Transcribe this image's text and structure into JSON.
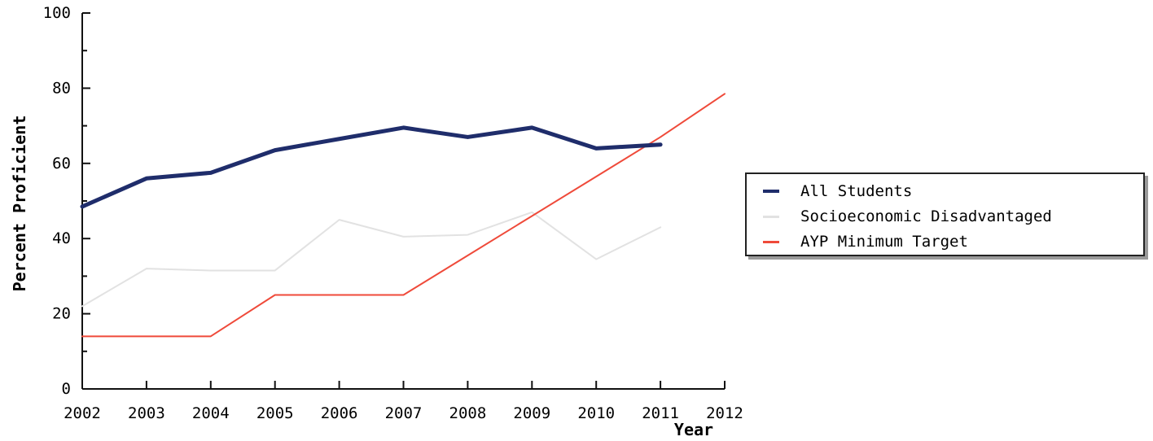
{
  "chart_data": {
    "type": "line",
    "title": "",
    "xlabel": "Year",
    "ylabel": "Percent Proficient",
    "x": [
      "2002",
      "2003",
      "2004",
      "2005",
      "2006",
      "2007",
      "2008",
      "2009",
      "2010",
      "2011",
      "2012"
    ],
    "ylim": [
      0,
      100
    ],
    "yticks": [
      "0",
      "20",
      "40",
      "60",
      "80",
      "100"
    ],
    "grid": false,
    "legend_position": "right",
    "series": [
      {
        "name": "All Students",
        "color": "#1f2d6b",
        "values": [
          48.5,
          56,
          57.5,
          63.5,
          66.5,
          69.5,
          67,
          69.5,
          64,
          65,
          null
        ]
      },
      {
        "name": "Socioeconomic Disadvantaged",
        "color": "#e2e2e2",
        "values": [
          22,
          32,
          31.5,
          31.5,
          45,
          40.5,
          41,
          47,
          34.5,
          43,
          null
        ]
      },
      {
        "name": "AYP Minimum Target",
        "color": "#ef4a3a",
        "values": [
          14,
          14,
          14,
          25,
          25,
          25,
          35.5,
          46,
          56.5,
          67,
          78.5
        ]
      }
    ]
  }
}
